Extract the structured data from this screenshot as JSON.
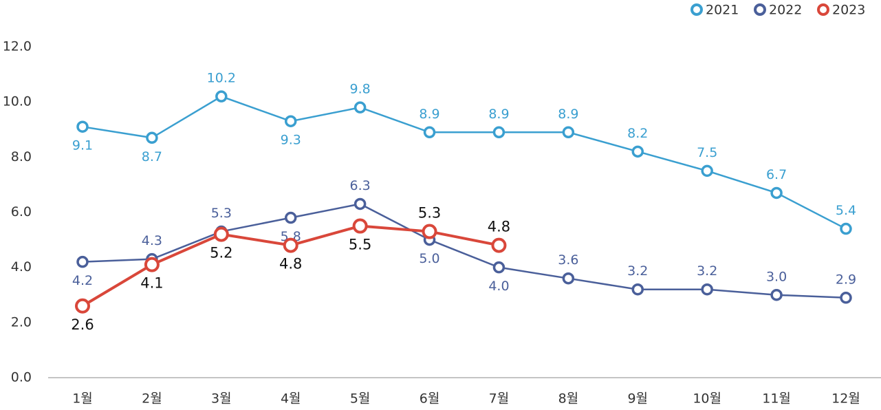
{
  "chart_data": {
    "type": "line",
    "categories": [
      "1월",
      "2월",
      "3월",
      "4월",
      "5월",
      "6월",
      "7월",
      "8월",
      "9월",
      "10월",
      "11월",
      "12월"
    ],
    "series": [
      {
        "name": "2021",
        "color": "#3a9fd0",
        "values": [
          9.1,
          8.7,
          10.2,
          9.3,
          9.8,
          8.9,
          8.9,
          8.9,
          8.2,
          7.5,
          6.7,
          5.4
        ]
      },
      {
        "name": "2022",
        "color": "#4a5f9a",
        "values": [
          4.2,
          4.3,
          5.3,
          5.8,
          6.3,
          5.0,
          4.0,
          3.6,
          3.2,
          3.2,
          3.0,
          2.9
        ],
        "value_labels": [
          "4.2",
          "4.3",
          "5.3",
          "5.8",
          "6.3",
          "5.0",
          "4.0",
          "3.6",
          "3.2",
          "3.2",
          "3.0",
          "2.9"
        ]
      },
      {
        "name": "2023",
        "color": "#d9473a",
        "values": [
          2.6,
          4.1,
          5.2,
          4.8,
          5.5,
          5.3,
          4.8,
          null,
          null,
          null,
          null,
          null
        ]
      }
    ],
    "ylim": [
      0,
      12
    ],
    "yticks": [
      {
        "value": 0,
        "label": "0.0"
      },
      {
        "value": 2,
        "label": "2.0"
      },
      {
        "value": 4,
        "label": "4.0"
      },
      {
        "value": 6,
        "label": "6.0"
      },
      {
        "value": 8,
        "label": "8.0"
      },
      {
        "value": 10,
        "label": "10.0"
      },
      {
        "value": 12,
        "label": "12.0"
      }
    ],
    "legend": "top-right"
  }
}
